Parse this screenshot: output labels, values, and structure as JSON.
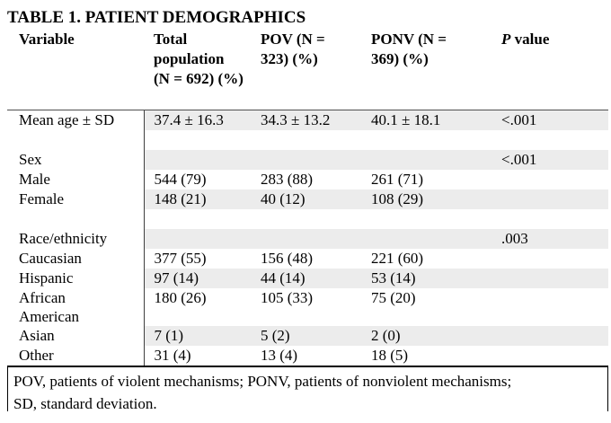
{
  "title": "TABLE 1. PATIENT DEMOGRAPHICS",
  "table": {
    "shade_color": "#ececec",
    "header": {
      "variable": "Variable",
      "total": "Total population (N = 692) (%)",
      "pov": "POV (N = 323) (%)",
      "ponv": "PONV (N = 369) (%)",
      "p_italic": "P",
      "p_rest": "value"
    },
    "rows": [
      {
        "label": "Mean age ± SD",
        "total": "37.4 ± 16.3",
        "pov": "34.3 ± 13.2",
        "ponv": "40.1 ± 18.1",
        "p": "<.001",
        "shaded": true,
        "spacer": false
      },
      {
        "label": "",
        "total": "",
        "pov": "",
        "ponv": "",
        "p": "",
        "shaded": false,
        "spacer": true
      },
      {
        "label": "Sex",
        "total": "",
        "pov": "",
        "ponv": "",
        "p": "<.001",
        "shaded": true,
        "spacer": false
      },
      {
        "label": "Male",
        "total": "544 (79)",
        "pov": "283 (88)",
        "ponv": "261 (71)",
        "p": "",
        "shaded": false,
        "spacer": false
      },
      {
        "label": "Female",
        "total": "148 (21)",
        "pov": "40 (12)",
        "ponv": "108 (29)",
        "p": "",
        "shaded": true,
        "spacer": false
      },
      {
        "label": "",
        "total": "",
        "pov": "",
        "ponv": "",
        "p": "",
        "shaded": false,
        "spacer": true
      },
      {
        "label": "Race/ethnicity",
        "total": "",
        "pov": "",
        "ponv": "",
        "p": ".003",
        "shaded": true,
        "spacer": false
      },
      {
        "label": "Caucasian",
        "total": "377 (55)",
        "pov": "156 (48)",
        "ponv": "221 (60)",
        "p": "",
        "shaded": false,
        "spacer": false
      },
      {
        "label": "Hispanic",
        "total": "97 (14)",
        "pov": "44 (14)",
        "ponv": "53 (14)",
        "p": "",
        "shaded": true,
        "spacer": false
      },
      {
        "label": "African\nAmerican",
        "total": "180 (26)",
        "pov": "105 (33)",
        "ponv": "75 (20)",
        "p": "",
        "shaded": false,
        "spacer": false
      },
      {
        "label": "Asian",
        "total": "7 (1)",
        "pov": "5 (2)",
        "ponv": "2 (0)",
        "p": "",
        "shaded": true,
        "spacer": false
      },
      {
        "label": "Other",
        "total": "31 (4)",
        "pov": "13 (4)",
        "ponv": "18 (5)",
        "p": "",
        "shaded": false,
        "spacer": false
      }
    ]
  },
  "footnote": "POV, patients of violent mechanisms; PONV, patients of nonviolent mechanisms;\nSD, standard deviation."
}
